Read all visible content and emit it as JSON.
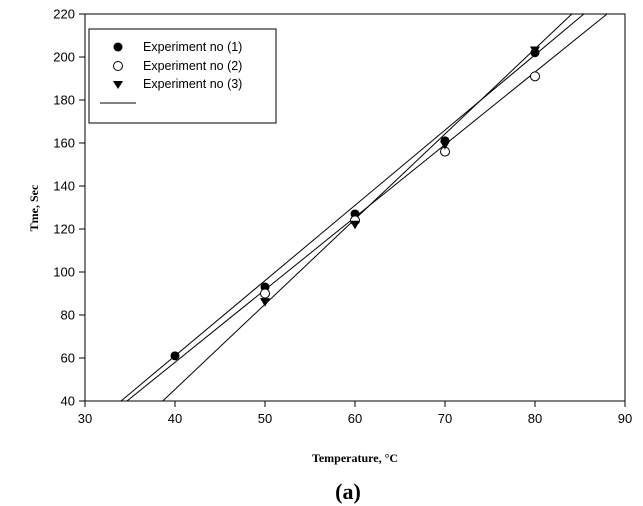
{
  "chart_data": {
    "type": "scatter",
    "xlabel": "Temperature, ",
    "xlabel_unit": "°C",
    "ylabel": "Tme, Sec",
    "panel_label": "(a)",
    "xlim": [
      30,
      90
    ],
    "ylim": [
      40,
      220
    ],
    "xticks": [
      30,
      40,
      50,
      60,
      70,
      80,
      90
    ],
    "yticks": [
      40,
      60,
      80,
      100,
      120,
      140,
      160,
      180,
      200,
      220
    ],
    "legend_position": "top-left",
    "series": [
      {
        "name": "Experiment no (1)",
        "marker": "filled-circle",
        "points": [
          [
            40,
            61
          ],
          [
            50,
            93
          ],
          [
            60,
            127
          ],
          [
            70,
            161
          ],
          [
            80,
            202
          ]
        ],
        "fit": {
          "slope": 3.5,
          "intercept": -79
        }
      },
      {
        "name": "Experiment no (2)",
        "marker": "open-circle",
        "points": [
          [
            50,
            90
          ],
          [
            60,
            124
          ],
          [
            70,
            156
          ],
          [
            80,
            191
          ]
        ],
        "fit": {
          "slope": 3.375,
          "intercept": -77
        }
      },
      {
        "name": "Experiment no (3)",
        "marker": "filled-triangle-down",
        "points": [
          [
            50,
            86
          ],
          [
            60,
            122
          ],
          [
            70,
            159
          ],
          [
            80,
            203
          ]
        ],
        "fit": {
          "slope": 3.96,
          "intercept": -113
        }
      }
    ],
    "legend_fit_label": ""
  }
}
